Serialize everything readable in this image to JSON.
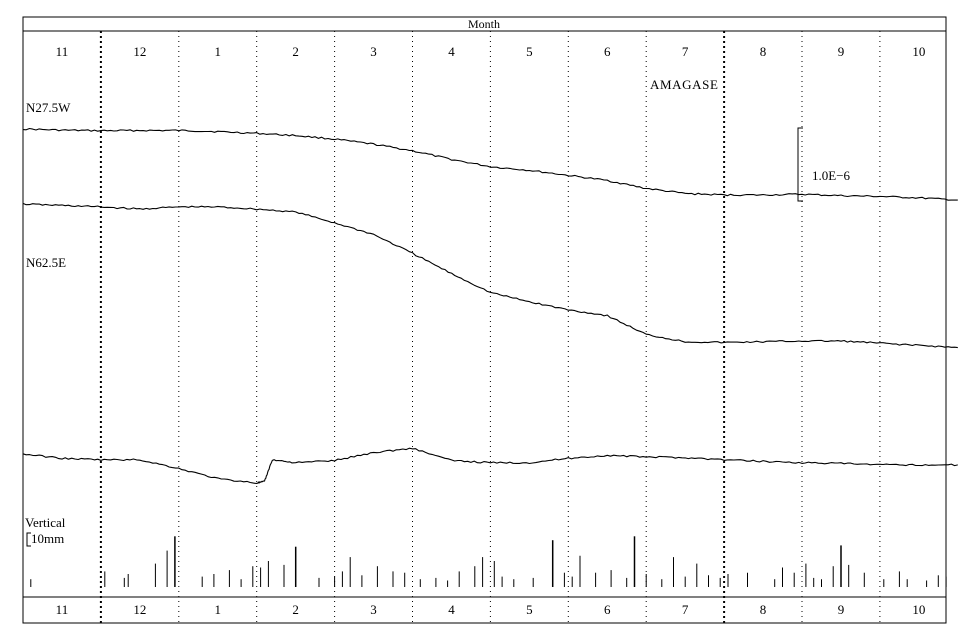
{
  "chart_data": {
    "type": "line",
    "title": "Month",
    "months": [
      "11",
      "12",
      "1",
      "2",
      "3",
      "4",
      "5",
      "6",
      "7",
      "8",
      "9",
      "10"
    ],
    "station": "AMAGASE",
    "scale_label": "1.0E−6",
    "rain_label_line1": "Vertical",
    "rain_label_line2": "10mm",
    "series": [
      {
        "name": "N27.5W",
        "x": [
          0,
          0.5,
          1,
          1.5,
          2,
          2.5,
          3,
          3.5,
          4,
          4.5,
          5,
          5.5,
          6,
          6.5,
          7,
          7.5,
          8,
          8.5,
          9,
          9.5,
          10,
          10.5,
          11,
          11.5,
          12
        ],
        "y": [
          0,
          -0.08,
          -0.12,
          -0.1,
          -0.1,
          -0.18,
          -0.3,
          -0.45,
          -0.7,
          -1.05,
          -1.5,
          -2.1,
          -2.6,
          -2.85,
          -3.2,
          -3.55,
          -4.1,
          -4.45,
          -4.55,
          -4.55,
          -4.5,
          -4.6,
          -4.65,
          -4.75,
          -4.9
        ]
      },
      {
        "name": "N62.5E",
        "x": [
          0,
          0.5,
          1,
          1.5,
          2,
          2.5,
          3,
          3.5,
          4,
          4.5,
          5,
          5.5,
          6,
          6.5,
          7,
          7.5,
          8,
          8.5,
          9,
          9.5,
          10,
          10.5,
          11,
          11.5,
          12
        ],
        "y": [
          0,
          -0.1,
          -0.2,
          -0.35,
          -0.2,
          -0.2,
          -0.35,
          -0.55,
          -1.3,
          -2.1,
          -3.4,
          -4.8,
          -6.1,
          -6.75,
          -7.3,
          -7.7,
          -9.0,
          -9.5,
          -9.55,
          -9.5,
          -9.45,
          -9.45,
          -9.6,
          -9.75,
          -9.9
        ]
      },
      {
        "name": "",
        "x": [
          0,
          0.5,
          1,
          1.5,
          2,
          2.5,
          3,
          3.1,
          3.2,
          3.5,
          4,
          4.5,
          5,
          5.5,
          6,
          6.5,
          7,
          7.5,
          8,
          8.5,
          9,
          9.5,
          10,
          10.5,
          11,
          11.5,
          12
        ],
        "y": [
          0,
          -0.3,
          -0.4,
          -0.4,
          -1.0,
          -1.7,
          -2.0,
          -1.9,
          -0.4,
          -0.6,
          -0.45,
          0.1,
          0.4,
          -0.45,
          -0.6,
          -0.6,
          -0.3,
          -0.1,
          -0.2,
          -0.25,
          -0.4,
          -0.5,
          -0.6,
          -0.65,
          -0.75,
          -0.75,
          -0.75
        ]
      }
    ],
    "rainfall": {
      "unit": "mm",
      "x": [
        0.1,
        1.05,
        1.3,
        1.35,
        1.7,
        1.85,
        1.95,
        2.3,
        2.45,
        2.65,
        2.8,
        2.95,
        3.05,
        3.15,
        3.35,
        3.5,
        3.8,
        4.0,
        4.1,
        4.2,
        4.35,
        4.55,
        4.75,
        4.9,
        5.1,
        5.3,
        5.45,
        5.6,
        5.8,
        5.9,
        6.05,
        6.15,
        6.3,
        6.55,
        6.8,
        6.95,
        7.05,
        7.15,
        7.35,
        7.55,
        7.75,
        7.85,
        8.0,
        8.2,
        8.35,
        8.5,
        8.65,
        8.8,
        8.95,
        9.05,
        9.3,
        9.65,
        9.75,
        9.9,
        10.05,
        10.15,
        10.25,
        10.4,
        10.5,
        10.6,
        10.8,
        11.05,
        11.25,
        11.35,
        11.6,
        11.75,
        11.85
      ],
      "y": [
        0.6,
        1.2,
        0.7,
        1.0,
        1.8,
        2.8,
        3.9,
        0.8,
        1.0,
        1.3,
        0.6,
        1.6,
        1.5,
        2.0,
        1.7,
        3.1,
        0.7,
        0.8,
        1.2,
        2.3,
        0.9,
        1.6,
        1.2,
        1.1,
        0.6,
        0.7,
        0.5,
        1.2,
        1.6,
        2.3,
        2.0,
        0.8,
        0.6,
        0.7,
        3.6,
        1.1,
        0.8,
        2.4,
        1.1,
        1.3,
        0.7,
        3.9,
        1.0,
        0.6,
        2.3,
        0.8,
        1.8,
        0.9,
        0.7,
        1.0,
        1.1,
        0.6,
        1.5,
        1.1,
        1.8,
        0.7,
        0.6,
        1.6,
        3.2,
        1.7,
        1.1,
        0.6,
        1.2,
        0.6,
        0.5,
        0.9,
        0.8
      ]
    }
  }
}
